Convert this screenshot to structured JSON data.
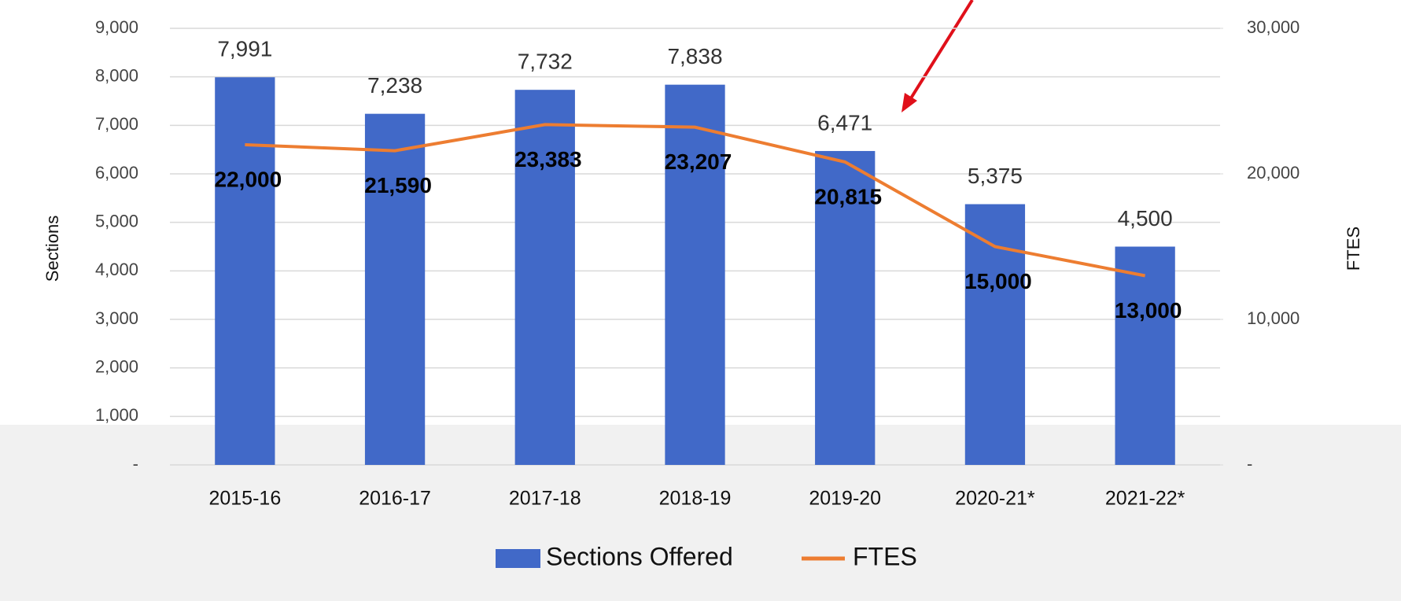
{
  "chart_data": {
    "type": "bar",
    "categories": [
      "2015-16",
      "2016-17",
      "2017-18",
      "2018-19",
      "2019-20",
      "2020-21*",
      "2021-22*"
    ],
    "series": [
      {
        "name": "Sections Offered",
        "type": "bar",
        "color": "#4169c8",
        "axis": "y",
        "values": [
          7991,
          7238,
          7732,
          7838,
          6471,
          5375,
          4500
        ],
        "value_labels": [
          "7,991",
          "7,238",
          "7,732",
          "7,838",
          "6,471",
          "5,375",
          "4,500"
        ]
      },
      {
        "name": "FTES",
        "type": "line",
        "color": "#ed7d31",
        "axis": "y2",
        "values": [
          22000,
          21590,
          23383,
          23207,
          20815,
          15000,
          13000
        ],
        "value_labels": [
          "22,000",
          "21,590",
          "23,383",
          "23,207",
          "20,815",
          "15,000",
          "13,000"
        ]
      }
    ],
    "ylabel": "Sections",
    "y2label": "FTES",
    "ylim": [
      0,
      9000
    ],
    "yticks": [
      {
        "value": 0,
        "label": "-"
      },
      {
        "value": 1000,
        "label": "1,000"
      },
      {
        "value": 2000,
        "label": "2,000"
      },
      {
        "value": 3000,
        "label": "3,000"
      },
      {
        "value": 4000,
        "label": "4,000"
      },
      {
        "value": 5000,
        "label": "5,000"
      },
      {
        "value": 6000,
        "label": "6,000"
      },
      {
        "value": 7000,
        "label": "7,000"
      },
      {
        "value": 8000,
        "label": "8,000"
      },
      {
        "value": 9000,
        "label": "9,000"
      }
    ],
    "y2lim": [
      0,
      30000
    ],
    "y2ticks": [
      {
        "value": 0,
        "label": "-"
      },
      {
        "value": 10000,
        "label": "10,000"
      },
      {
        "value": 20000,
        "label": "20,000"
      },
      {
        "value": 30000,
        "label": "30,000"
      }
    ],
    "grid": true,
    "legend": "bottom"
  }
}
